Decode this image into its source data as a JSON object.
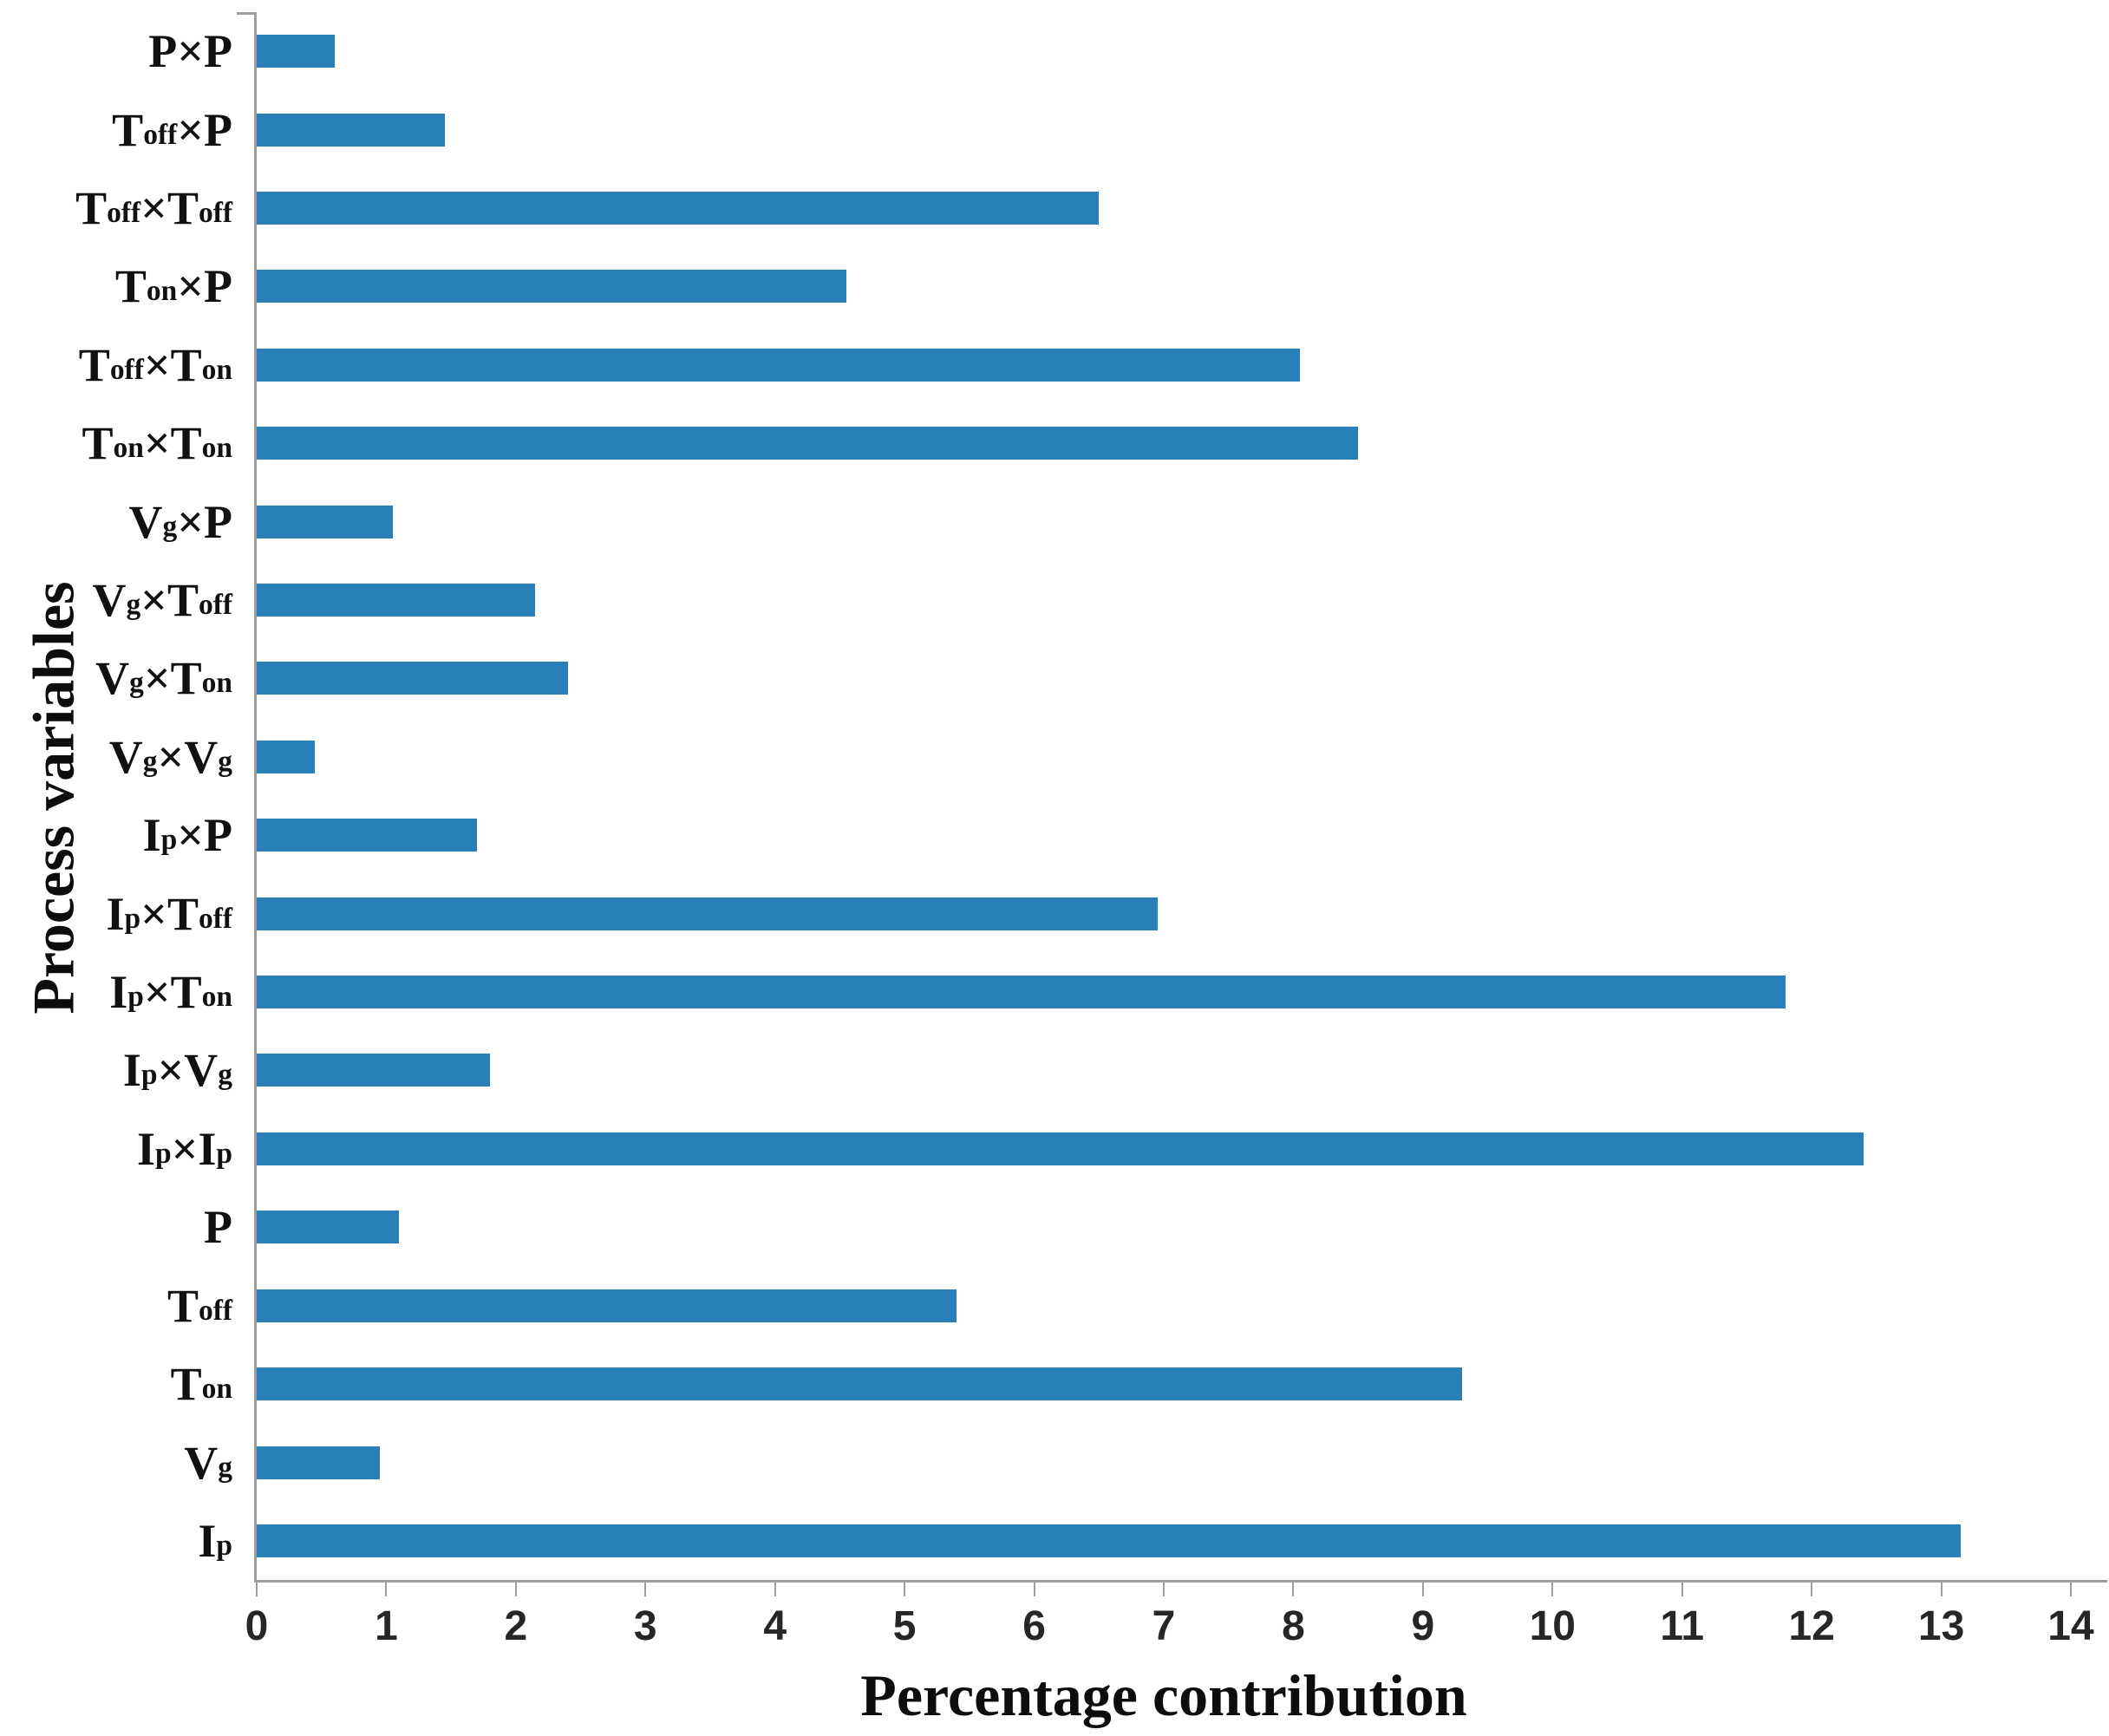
{
  "figure": {
    "background": "#ffffff"
  },
  "chart_data": {
    "type": "bar",
    "orientation": "horizontal",
    "title": "",
    "xlabel": "Percentage contribution",
    "ylabel": "Process variables",
    "xlim": [
      0,
      14
    ],
    "x_ticks": [
      0,
      1,
      2,
      3,
      4,
      5,
      6,
      7,
      8,
      9,
      10,
      11,
      12,
      13,
      14
    ],
    "grid": false,
    "legend": "none",
    "bar_color": "#2980b9",
    "axis_color": "#9e9e9e",
    "tick_label_color": "#262626",
    "subscript_marker": "~",
    "categories": [
      "P×P",
      "T~off~×P",
      "T~off~×T~off~",
      "T~on~×P",
      "T~off~×T~on~",
      "T~on~×T~on~",
      "V~g~×P",
      "V~g~×T~off~",
      "V~g~×T~on~",
      "V~g~×V~g~",
      "I~p~×P",
      "I~p~×T~off~",
      "I~p~×T~on~",
      "I~p~×V~g~",
      "I~p~×I~p~",
      "P",
      "T~off~",
      "T~on~",
      "V~g~",
      "I~p~"
    ],
    "values": [
      0.6,
      1.45,
      6.5,
      4.55,
      8.05,
      8.5,
      1.05,
      2.15,
      2.4,
      0.45,
      1.7,
      6.95,
      11.8,
      1.8,
      12.4,
      1.1,
      5.4,
      9.3,
      0.95,
      13.15
    ]
  }
}
